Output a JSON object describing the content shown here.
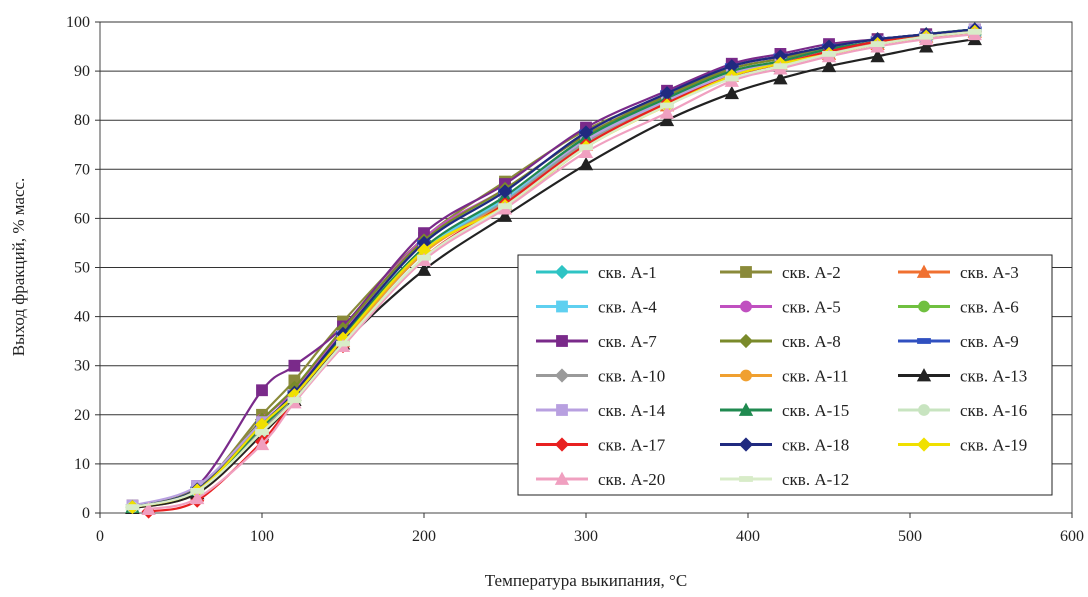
{
  "chart_data": {
    "type": "line",
    "xlabel": "Температура выкипания, °C",
    "ylabel": "Выход фракций, % масс.",
    "xlim": [
      0,
      600
    ],
    "ylim": [
      0,
      100
    ],
    "xticks": [
      0,
      100,
      200,
      300,
      400,
      500,
      600
    ],
    "yticks": [
      0,
      10,
      20,
      30,
      40,
      50,
      60,
      70,
      80,
      90,
      100
    ],
    "grid": "horizontal",
    "legend_position": "bottom-right",
    "series": [
      {
        "name": "скв. А-1",
        "color": "#2ec4c4",
        "marker": "diamond",
        "x": [
          20,
          60,
          100,
          120,
          150,
          200,
          250,
          300,
          350,
          390,
          420,
          450,
          480,
          510,
          540
        ],
        "y": [
          1.2,
          4.5,
          17,
          23,
          35,
          53,
          64,
          76,
          84,
          89,
          91.5,
          94,
          96,
          97,
          98
        ]
      },
      {
        "name": "скв. А-2",
        "color": "#8a8a3a",
        "marker": "square",
        "x": [
          20,
          60,
          100,
          120,
          150,
          200,
          250,
          300,
          350,
          390,
          420,
          450,
          480,
          510,
          540
        ],
        "y": [
          1.5,
          5,
          20,
          27,
          39,
          56,
          67.5,
          78,
          85,
          91,
          93,
          95,
          96.5,
          97.5,
          98.5
        ]
      },
      {
        "name": "скв. А-3",
        "color": "#f07030",
        "marker": "triangle",
        "x": [
          20,
          60,
          100,
          120,
          150,
          200,
          250,
          300,
          350,
          390,
          420,
          450,
          480,
          510,
          540
        ],
        "y": [
          1,
          4,
          16,
          23,
          35,
          53,
          63,
          75,
          83,
          89,
          91.5,
          93.5,
          95.5,
          97,
          98
        ]
      },
      {
        "name": "скв. А-4",
        "color": "#5fd0f0",
        "marker": "square",
        "x": [
          20,
          60,
          100,
          120,
          150,
          200,
          250,
          300,
          350,
          390,
          420,
          450,
          480,
          510,
          540
        ],
        "y": [
          1.2,
          4.8,
          17.5,
          23.5,
          35.5,
          53.5,
          64,
          76,
          84,
          89.5,
          92,
          94,
          96,
          97,
          98
        ]
      },
      {
        "name": "скв. А-5",
        "color": "#c050c0",
        "marker": "circle",
        "x": [
          20,
          60,
          100,
          120,
          150,
          200,
          250,
          300,
          350,
          390,
          420,
          450,
          480,
          510,
          540
        ],
        "y": [
          1.3,
          5,
          19,
          25,
          37,
          56,
          66,
          77,
          85,
          90.5,
          92.5,
          94.5,
          96,
          97.5,
          98.5
        ]
      },
      {
        "name": "скв. А-6",
        "color": "#70c040",
        "marker": "circle",
        "x": [
          20,
          60,
          100,
          120,
          150,
          200,
          250,
          300,
          350,
          390,
          420,
          450,
          480,
          510,
          540
        ],
        "y": [
          1.2,
          4.6,
          17.5,
          24,
          36,
          54,
          64.5,
          76.5,
          84.5,
          90,
          92,
          94.5,
          96,
          97.5,
          98.5
        ]
      },
      {
        "name": "скв. А-7",
        "color": "#7a2a8a",
        "marker": "square",
        "x": [
          20,
          60,
          100,
          120,
          150,
          200,
          250,
          300,
          350,
          390,
          420,
          450,
          480,
          510,
          540
        ],
        "y": [
          1.5,
          5.5,
          25,
          30,
          38,
          57,
          67,
          78.5,
          86,
          91.5,
          93.5,
          95.5,
          96.5,
          97.5,
          98.5
        ]
      },
      {
        "name": "скв. А-8",
        "color": "#7a8a2a",
        "marker": "diamond",
        "x": [
          20,
          60,
          100,
          120,
          150,
          200,
          250,
          300,
          350,
          390,
          420,
          450,
          480,
          510,
          540
        ],
        "y": [
          1.3,
          5,
          19,
          25.5,
          37.5,
          55.5,
          66,
          77,
          85,
          90.5,
          92.5,
          95,
          96.5,
          97.5,
          98.5
        ]
      },
      {
        "name": "скв. А-9",
        "color": "#3050c0",
        "marker": "dash",
        "x": [
          20,
          60,
          100,
          120,
          150,
          200,
          250,
          300,
          350,
          390,
          420,
          450,
          480,
          510,
          540
        ],
        "y": [
          1.2,
          4.8,
          18,
          24.5,
          36.5,
          55,
          65.5,
          77.5,
          85.5,
          91,
          93,
          95,
          96.5,
          97.5,
          98.5
        ]
      },
      {
        "name": "скв. А-10",
        "color": "#9a9a9a",
        "marker": "diamond",
        "x": [
          20,
          60,
          100,
          120,
          150,
          200,
          250,
          300,
          350,
          390,
          420,
          450,
          480,
          510,
          540
        ],
        "y": [
          1.2,
          4.6,
          17,
          23.5,
          35.5,
          53,
          63.5,
          75.5,
          83.5,
          89.5,
          91.5,
          94,
          95.5,
          97,
          98
        ]
      },
      {
        "name": "скв. А-11",
        "color": "#f0a030",
        "marker": "circle",
        "x": [
          20,
          60,
          100,
          120,
          150,
          200,
          250,
          300,
          350,
          390,
          420,
          450,
          480,
          510,
          540
        ],
        "y": [
          1.2,
          4.5,
          16.5,
          23,
          35,
          53,
          63,
          75,
          83.5,
          89,
          91.5,
          93.5,
          95.5,
          97,
          98
        ]
      },
      {
        "name": "скв. А-13",
        "color": "#222222",
        "marker": "triangle",
        "x": [
          20,
          60,
          100,
          120,
          150,
          200,
          250,
          300,
          350,
          390,
          420,
          450,
          480,
          510,
          540
        ],
        "y": [
          1,
          4,
          16,
          23,
          34.5,
          49.5,
          60.5,
          71,
          80,
          85.5,
          88.5,
          91,
          93,
          95,
          96.5
        ]
      },
      {
        "name": "скв. А-14",
        "color": "#b8a0e0",
        "marker": "square",
        "x": [
          20,
          60,
          100,
          120,
          150,
          200,
          250,
          300,
          350,
          390,
          420,
          450,
          480,
          510,
          540
        ],
        "y": [
          1.5,
          5.5,
          18.5,
          24,
          36,
          54,
          64.5,
          76,
          84,
          89.5,
          92,
          94,
          96,
          97,
          98.5
        ]
      },
      {
        "name": "скв. А-15",
        "color": "#208a50",
        "marker": "triangle",
        "x": [
          20,
          60,
          100,
          120,
          150,
          200,
          250,
          300,
          350,
          390,
          420,
          450,
          480,
          510,
          540
        ],
        "y": [
          1.2,
          4.7,
          17.5,
          24,
          36,
          54,
          64.5,
          76.5,
          84.5,
          90,
          92,
          94.5,
          96,
          97.5,
          98.5
        ]
      },
      {
        "name": "скв. А-16",
        "color": "#c8e4c0",
        "marker": "circle",
        "x": [
          20,
          60,
          100,
          120,
          150,
          200,
          250,
          300,
          350,
          390,
          420,
          450,
          480,
          510,
          540
        ],
        "y": [
          1.2,
          4.5,
          16.5,
          23,
          34.5,
          52,
          62,
          74.5,
          83,
          88.5,
          91,
          93.5,
          95.5,
          97,
          98
        ]
      },
      {
        "name": "скв. А-17",
        "color": "#e82020",
        "marker": "diamond",
        "x": [
          30,
          60,
          100,
          120,
          150,
          200,
          250,
          300,
          350,
          390,
          420,
          450,
          480,
          510,
          540
        ],
        "y": [
          0.3,
          2.5,
          14.5,
          23,
          34,
          52,
          63,
          75,
          83.5,
          89,
          91.5,
          94,
          96,
          97,
          98
        ]
      },
      {
        "name": "скв. А-18",
        "color": "#202a80",
        "marker": "diamond",
        "x": [
          20,
          60,
          100,
          120,
          150,
          200,
          250,
          300,
          350,
          390,
          420,
          450,
          480,
          510,
          540
        ],
        "y": [
          1.2,
          4.8,
          18,
          24.5,
          36.5,
          55,
          65.5,
          77.5,
          85.5,
          91,
          93,
          95,
          96.5,
          97.5,
          98.5
        ]
      },
      {
        "name": "скв. А-19",
        "color": "#f0e000",
        "marker": "diamond",
        "x": [
          20,
          60,
          100,
          120,
          150,
          200,
          250,
          300,
          350,
          390,
          420,
          450,
          480,
          510,
          540
        ],
        "y": [
          1.2,
          4.6,
          18,
          24,
          35.5,
          53.5,
          62.5,
          74.5,
          83,
          89,
          91.5,
          93.5,
          95.5,
          97,
          98
        ]
      },
      {
        "name": "скв. А-20",
        "color": "#f0a0c0",
        "marker": "triangle",
        "x": [
          30,
          60,
          100,
          120,
          150,
          200,
          250,
          300,
          350,
          390,
          420,
          450,
          480,
          510,
          540
        ],
        "y": [
          0.8,
          3,
          14,
          22.5,
          34,
          51.5,
          62,
          73.5,
          81.5,
          88,
          90.5,
          93,
          95,
          96.5,
          97.5
        ]
      },
      {
        "name": "скв. А-12",
        "color": "#d8ecc8",
        "marker": "dash",
        "x": [
          20,
          60,
          100,
          120,
          150,
          200,
          250,
          300,
          350,
          390,
          420,
          450,
          480,
          510,
          540
        ],
        "y": [
          1.2,
          4.5,
          16.5,
          23,
          34.5,
          52,
          62.5,
          74.5,
          83,
          88.5,
          91,
          93.5,
          95.5,
          97,
          98
        ]
      }
    ]
  }
}
